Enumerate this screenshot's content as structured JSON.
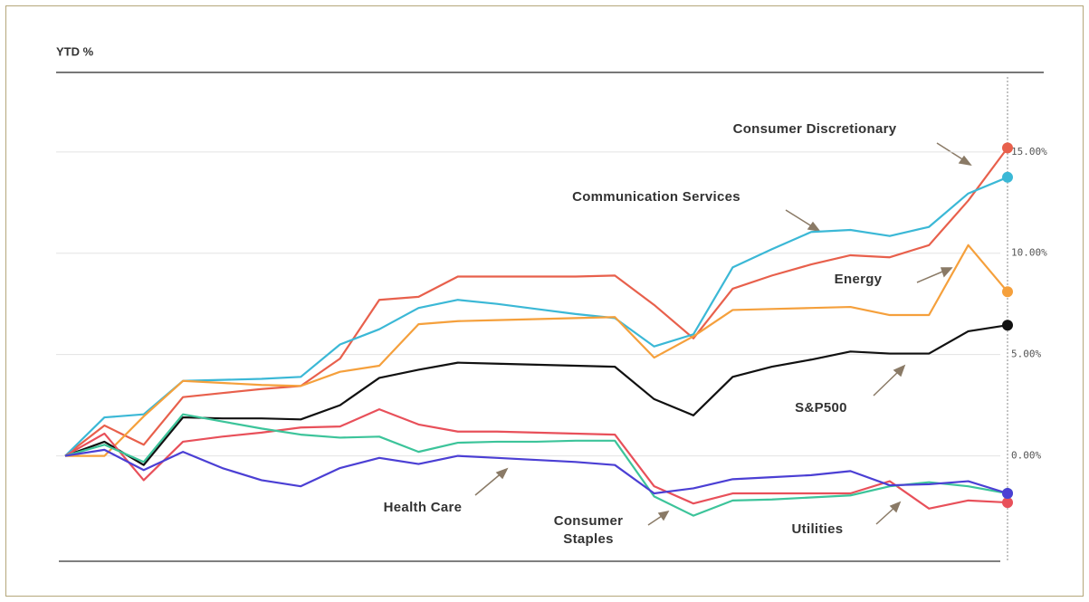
{
  "chart_data": {
    "type": "line",
    "title": "YTD %",
    "categories": [
      null,
      null,
      null,
      null,
      null,
      null,
      null,
      null,
      null,
      null,
      null,
      null,
      null,
      null,
      null,
      null,
      null,
      null,
      null,
      null,
      null,
      null,
      null,
      null,
      null
    ],
    "ylim": [
      -5.2,
      18.7
    ],
    "yticks": [
      {
        "value": 0,
        "label": "0.00%"
      },
      {
        "value": 5,
        "label": "5.00%"
      },
      {
        "value": 10,
        "label": "10.00%"
      },
      {
        "value": 15,
        "label": "15.00%"
      }
    ],
    "grid": true,
    "series": [
      {
        "name": "Consumer Discretionary",
        "color": "#e8604c",
        "values": [
          0,
          1.5,
          0.55,
          2.9,
          3.1,
          3.3,
          3.45,
          4.8,
          7.7,
          7.85,
          8.85,
          8.85,
          8.85,
          8.85,
          8.9,
          7.45,
          5.8,
          8.25,
          8.9,
          9.45,
          9.9,
          9.8,
          10.4,
          12.6,
          15.2
        ]
      },
      {
        "name": "Communication Services",
        "color": "#3bb8d6",
        "values": [
          0,
          1.9,
          2.05,
          3.7,
          3.75,
          3.8,
          3.9,
          5.5,
          6.25,
          7.3,
          7.7,
          7.5,
          7.25,
          7.0,
          6.8,
          5.4,
          6.0,
          9.3,
          10.2,
          11.05,
          11.15,
          10.85,
          11.3,
          12.95,
          13.75
        ]
      },
      {
        "name": "Energy",
        "color": "#f5a03c",
        "values": [
          0,
          0,
          1.95,
          3.7,
          3.6,
          3.5,
          3.45,
          4.15,
          4.45,
          6.5,
          6.65,
          6.7,
          6.75,
          6.8,
          6.85,
          4.85,
          5.9,
          7.2,
          7.25,
          7.3,
          7.35,
          6.95,
          6.95,
          10.4,
          8.1
        ]
      },
      {
        "name": "S&P500",
        "color": "#111111",
        "values": [
          0,
          0.7,
          -0.45,
          1.9,
          1.85,
          1.85,
          1.8,
          2.5,
          3.85,
          4.25,
          4.6,
          4.55,
          4.5,
          4.45,
          4.4,
          2.8,
          2.0,
          3.9,
          4.4,
          4.75,
          5.15,
          5.05,
          5.05,
          6.15,
          6.45
        ]
      },
      {
        "name": "Health Care",
        "color": "#e8505a",
        "values": [
          0,
          1.1,
          -1.2,
          0.7,
          0.95,
          1.15,
          1.4,
          1.45,
          2.3,
          1.55,
          1.2,
          1.2,
          1.15,
          1.1,
          1.05,
          -1.5,
          -2.35,
          -1.85,
          -1.85,
          -1.85,
          -1.85,
          -1.25,
          -2.6,
          -2.2,
          -2.3
        ]
      },
      {
        "name": "Consumer Staples",
        "color": "#3cc49a",
        "values": [
          0,
          0.55,
          -0.3,
          2.05,
          1.7,
          1.35,
          1.05,
          0.9,
          0.95,
          0.2,
          0.65,
          0.7,
          0.7,
          0.75,
          0.75,
          -2.0,
          -2.95,
          -2.2,
          -2.15,
          -2.05,
          -1.95,
          -1.5,
          -1.3,
          -1.5,
          -1.85
        ]
      },
      {
        "name": "Utilities",
        "color": "#4b3fd4",
        "values": [
          0,
          0.3,
          -0.7,
          0.2,
          -0.6,
          -1.2,
          -1.5,
          -0.6,
          -0.1,
          -0.4,
          0,
          -0.1,
          -0.2,
          -0.3,
          -0.45,
          -1.85,
          -1.6,
          -1.15,
          -1.05,
          -0.95,
          -0.75,
          -1.45,
          -1.4,
          -1.25,
          -1.85
        ]
      }
    ]
  }
}
